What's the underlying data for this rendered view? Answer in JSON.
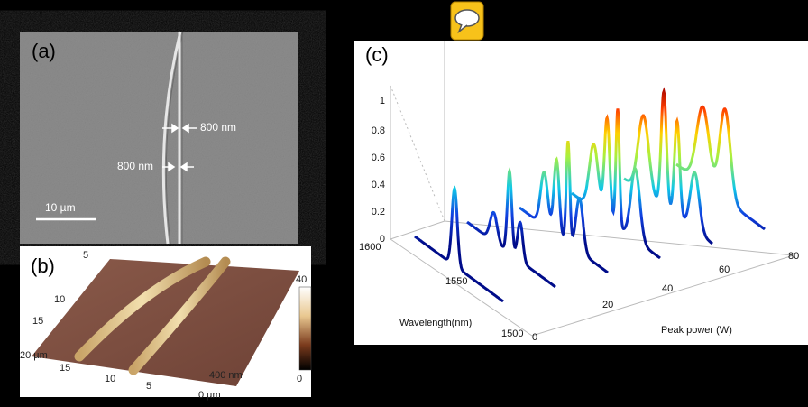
{
  "panels": {
    "a": {
      "label": "(a)",
      "annotations": [
        "800 nm",
        "800 nm"
      ],
      "scale_bar": "10 µm"
    },
    "b": {
      "label": "(b)",
      "ticks": [
        "5",
        "10",
        "15",
        "20 µm",
        "15",
        "10",
        "5",
        "0 µm"
      ],
      "height_label": "400 nm",
      "colorbar": [
        "40",
        "0"
      ]
    },
    "c": {
      "label": "(c)",
      "zticks": [
        "0",
        "0.2",
        "0.4",
        "0.6",
        "0.8",
        "1"
      ],
      "wavelength_ticks": [
        "1600",
        "1550",
        "1500"
      ],
      "power_ticks": [
        "0",
        "20",
        "40",
        "60",
        "80"
      ],
      "xlabel": "Wavelength(nm)",
      "ylabel": "Peak power (W)"
    }
  }
}
